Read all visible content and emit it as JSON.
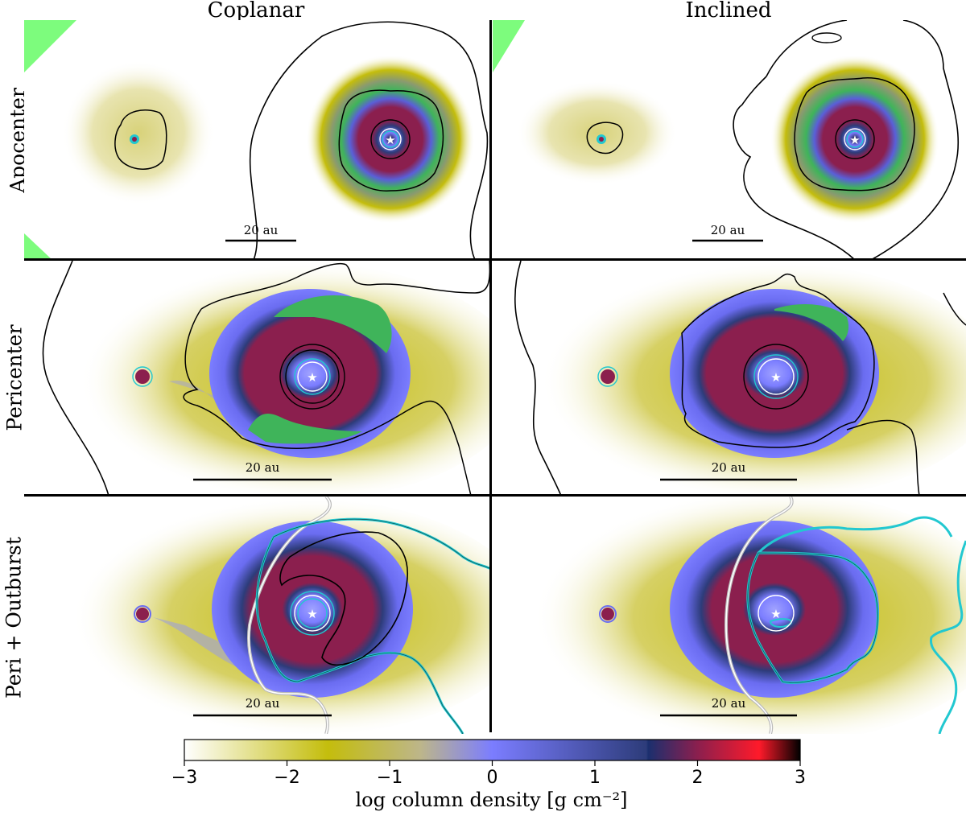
{
  "columns": [
    "Coplanar",
    "Inclined"
  ],
  "rows": [
    "Apocenter",
    "Pericenter",
    "Peri + Outburst"
  ],
  "scale_bar_label": "20 au",
  "colorbar": {
    "label": "log column density [g cm⁻²]",
    "ticks": [
      "−3",
      "−2",
      "−1",
      "0",
      "1",
      "2",
      "3"
    ],
    "range": [
      -3,
      3
    ],
    "colormap_stops": [
      {
        "value": -3.0,
        "color": "#ffffff"
      },
      {
        "value": -1.6,
        "color": "#c4bd0c"
      },
      {
        "value": -0.7,
        "color": "#bdb68a"
      },
      {
        "value": 0.0,
        "color": "#7b7dff"
      },
      {
        "value": 1.5,
        "color": "#2d3c7a"
      },
      {
        "value": 1.52,
        "color": "#1b2f6e"
      },
      {
        "value": 2.0,
        "color": "#8b1f4e"
      },
      {
        "value": 2.6,
        "color": "#ff1a2a"
      },
      {
        "value": 3.0,
        "color": "#000000"
      }
    ]
  },
  "chart_data": {
    "type": "heatmap",
    "title": "",
    "layout": "3 rows x 2 columns of column-density maps",
    "colors": {
      "contour_black": "#000000",
      "contour_cyan": "#22c8d0",
      "contour_white": "#ffffff",
      "highlight_green": "#3fb45a",
      "corner_green": "#7dfc7d"
    }
  }
}
